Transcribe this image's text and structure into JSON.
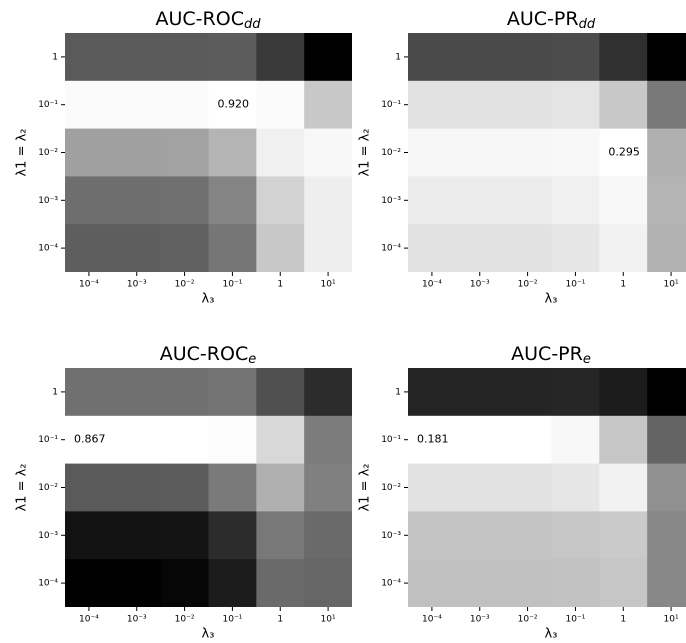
{
  "chart_data": [
    {
      "type": "heatmap",
      "title": {
        "text": "AUC-ROC",
        "subscript": "dd"
      },
      "x_label": "λ₃",
      "y_label": "λ1 = λ₂",
      "x_categories": [
        "10⁻⁴",
        "10⁻³",
        "10⁻²",
        "10⁻¹",
        "1",
        "10¹"
      ],
      "y_categories": [
        "1",
        "10⁻¹",
        "10⁻²",
        "10⁻³",
        "10⁻⁴"
      ],
      "cell_colors": [
        [
          "#5a5a5a",
          "#5a5a5a",
          "#5a5a5a",
          "#5c5c5c",
          "#3a3a3a",
          "#000000"
        ],
        [
          "#fbfbfb",
          "#fbfbfb",
          "#fbfbfb",
          "#ffffff",
          "#fbfbfb",
          "#c8c8c8"
        ],
        [
          "#a0a0a0",
          "#a0a0a0",
          "#a2a2a2",
          "#b4b4b4",
          "#f0f0f0",
          "#f8f8f8"
        ],
        [
          "#6e6e6e",
          "#6e6e6e",
          "#707070",
          "#848484",
          "#d2d2d2",
          "#eeeeee"
        ],
        [
          "#5e5e5e",
          "#5e5e5e",
          "#606060",
          "#767676",
          "#c8c8c8",
          "#eeeeee"
        ]
      ],
      "values": [
        [
          null,
          null,
          null,
          null,
          null,
          null
        ],
        [
          null,
          null,
          null,
          0.92,
          null,
          null
        ],
        [
          null,
          null,
          null,
          null,
          null,
          null
        ],
        [
          null,
          null,
          null,
          null,
          null,
          null
        ],
        [
          null,
          null,
          null,
          null,
          null,
          null
        ]
      ],
      "value_labels": [
        [
          null,
          null,
          null,
          null,
          null,
          null
        ],
        [
          null,
          null,
          null,
          "0.920",
          null,
          null
        ],
        [
          null,
          null,
          null,
          null,
          null,
          null
        ],
        [
          null,
          null,
          null,
          null,
          null,
          null
        ],
        [
          null,
          null,
          null,
          null,
          null,
          null
        ]
      ]
    },
    {
      "type": "heatmap",
      "title": {
        "text": "AUC-PR",
        "subscript": "dd"
      },
      "x_label": "λ₃",
      "y_label": "λ1 = λ₂",
      "x_categories": [
        "10⁻⁴",
        "10⁻³",
        "10⁻²",
        "10⁻¹",
        "1",
        "10¹"
      ],
      "y_categories": [
        "1",
        "10⁻¹",
        "10⁻²",
        "10⁻³",
        "10⁻⁴"
      ],
      "cell_colors": [
        [
          "#4a4a4a",
          "#4a4a4a",
          "#4a4a4a",
          "#4c4c4c",
          "#303030",
          "#000000"
        ],
        [
          "#e2e2e2",
          "#e2e2e2",
          "#e2e2e2",
          "#e4e4e4",
          "#c8c8c8",
          "#787878"
        ],
        [
          "#f6f6f6",
          "#f6f6f6",
          "#f6f6f6",
          "#f8f8f8",
          "#ffffff",
          "#b0b0b0"
        ],
        [
          "#ececec",
          "#ececec",
          "#ececec",
          "#f0f0f0",
          "#f8f8f8",
          "#b4b4b4"
        ],
        [
          "#e2e2e2",
          "#e2e2e2",
          "#e2e2e2",
          "#e6e6e6",
          "#f2f2f2",
          "#b2b2b2"
        ]
      ],
      "values": [
        [
          null,
          null,
          null,
          null,
          null,
          null
        ],
        [
          null,
          null,
          null,
          null,
          null,
          null
        ],
        [
          null,
          null,
          null,
          null,
          0.295,
          null
        ],
        [
          null,
          null,
          null,
          null,
          null,
          null
        ],
        [
          null,
          null,
          null,
          null,
          null,
          null
        ]
      ],
      "value_labels": [
        [
          null,
          null,
          null,
          null,
          null,
          null
        ],
        [
          null,
          null,
          null,
          null,
          null,
          null
        ],
        [
          null,
          null,
          null,
          null,
          "0.295",
          null
        ],
        [
          null,
          null,
          null,
          null,
          null,
          null
        ],
        [
          null,
          null,
          null,
          null,
          null,
          null
        ]
      ]
    },
    {
      "type": "heatmap",
      "title": {
        "text": "AUC-ROC",
        "subscript": "e"
      },
      "x_label": "λ₃",
      "y_label": "λ1 = λ₂",
      "x_categories": [
        "10⁻⁴",
        "10⁻³",
        "10⁻²",
        "10⁻¹",
        "1",
        "10¹"
      ],
      "y_categories": [
        "1",
        "10⁻¹",
        "10⁻²",
        "10⁻³",
        "10⁻⁴"
      ],
      "cell_colors": [
        [
          "#707070",
          "#707070",
          "#707070",
          "#747474",
          "#505050",
          "#2c2c2c"
        ],
        [
          "#ffffff",
          "#ffffff",
          "#ffffff",
          "#fcfcfc",
          "#d8d8d8",
          "#7c7c7c"
        ],
        [
          "#5a5a5a",
          "#5a5a5a",
          "#5c5c5c",
          "#7a7a7a",
          "#b0b0b0",
          "#808080"
        ],
        [
          "#121212",
          "#121212",
          "#141414",
          "#2c2c2c",
          "#787878",
          "#6a6a6a"
        ],
        [
          "#000000",
          "#000000",
          "#060606",
          "#1c1c1c",
          "#6a6a6a",
          "#666666"
        ]
      ],
      "values": [
        [
          null,
          null,
          null,
          null,
          null,
          null
        ],
        [
          0.867,
          null,
          null,
          null,
          null,
          null
        ],
        [
          null,
          null,
          null,
          null,
          null,
          null
        ],
        [
          null,
          null,
          null,
          null,
          null,
          null
        ],
        [
          null,
          null,
          null,
          null,
          null,
          null
        ]
      ],
      "value_labels": [
        [
          null,
          null,
          null,
          null,
          null,
          null
        ],
        [
          "0.867",
          null,
          null,
          null,
          null,
          null
        ],
        [
          null,
          null,
          null,
          null,
          null,
          null
        ],
        [
          null,
          null,
          null,
          null,
          null,
          null
        ],
        [
          null,
          null,
          null,
          null,
          null,
          null
        ]
      ]
    },
    {
      "type": "heatmap",
      "title": {
        "text": "AUC-PR",
        "subscript": "e"
      },
      "x_label": "λ₃",
      "y_label": "λ1 = λ₂",
      "x_categories": [
        "10⁻⁴",
        "10⁻³",
        "10⁻²",
        "10⁻¹",
        "1",
        "10¹"
      ],
      "y_categories": [
        "1",
        "10⁻¹",
        "10⁻²",
        "10⁻³",
        "10⁻⁴"
      ],
      "cell_colors": [
        [
          "#242424",
          "#242424",
          "#242424",
          "#262626",
          "#1c1c1c",
          "#000000"
        ],
        [
          "#ffffff",
          "#ffffff",
          "#ffffff",
          "#f8f8f8",
          "#c6c6c6",
          "#646464"
        ],
        [
          "#e2e2e2",
          "#e2e2e2",
          "#e2e2e2",
          "#e6e6e6",
          "#f2f2f2",
          "#909090"
        ],
        [
          "#c4c4c4",
          "#c4c4c4",
          "#c4c4c4",
          "#c6c6c6",
          "#cacaca",
          "#888888"
        ],
        [
          "#c0c0c0",
          "#c0c0c0",
          "#c0c0c0",
          "#c2c2c2",
          "#c6c6c6",
          "#888888"
        ]
      ],
      "values": [
        [
          null,
          null,
          null,
          null,
          null,
          null
        ],
        [
          0.181,
          null,
          null,
          null,
          null,
          null
        ],
        [
          null,
          null,
          null,
          null,
          null,
          null
        ],
        [
          null,
          null,
          null,
          null,
          null,
          null
        ],
        [
          null,
          null,
          null,
          null,
          null,
          null
        ]
      ],
      "value_labels": [
        [
          null,
          null,
          null,
          null,
          null,
          null
        ],
        [
          "0.181",
          null,
          null,
          null,
          null,
          null
        ],
        [
          null,
          null,
          null,
          null,
          null,
          null
        ],
        [
          null,
          null,
          null,
          null,
          null,
          null
        ],
        [
          null,
          null,
          null,
          null,
          null,
          null
        ]
      ]
    }
  ]
}
